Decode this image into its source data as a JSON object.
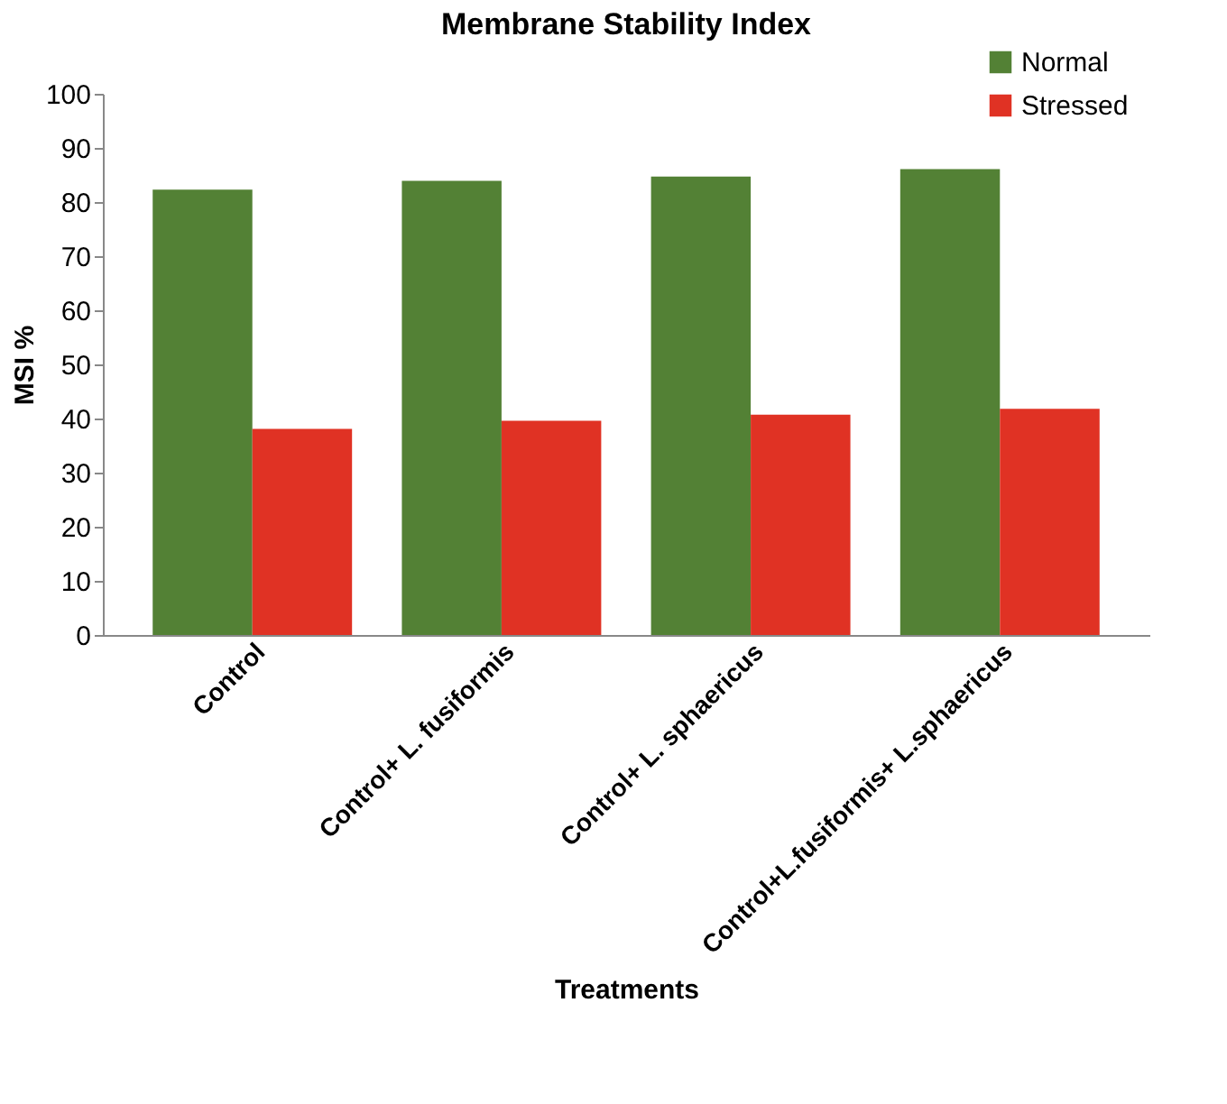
{
  "chart_data": {
    "type": "bar",
    "title": "Membrane Stability Index",
    "xlabel": "Treatments",
    "ylabel": "MSI %",
    "categories": [
      "Control",
      "Control+ L. fusiformis",
      "Control+ L. sphaericus",
      "Control+L.fusiformis+ L.sphaericus"
    ],
    "series": [
      {
        "name": "Normal",
        "color": "#538135",
        "values": [
          82.3,
          83.9,
          84.7,
          86.1
        ]
      },
      {
        "name": "Stressed",
        "color": "#e03224",
        "values": [
          38.1,
          39.6,
          40.7,
          41.8
        ]
      }
    ],
    "ylim": [
      0,
      100
    ],
    "yticks": [
      0,
      10,
      20,
      30,
      40,
      50,
      60,
      70,
      80,
      90,
      100
    ],
    "grid": false,
    "legend": "top right"
  }
}
